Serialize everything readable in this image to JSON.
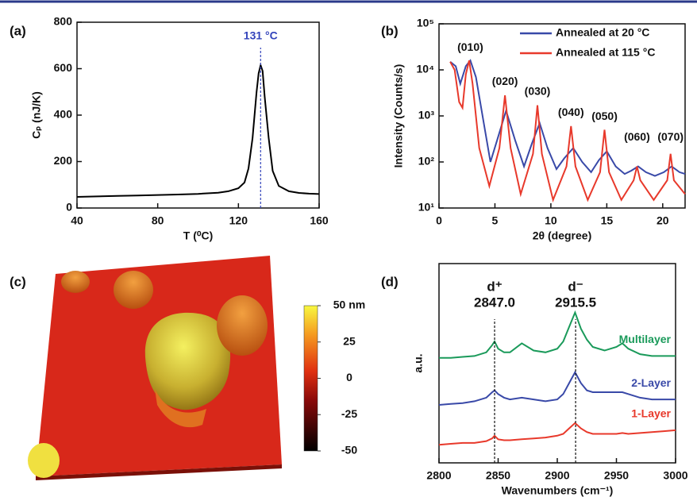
{
  "chart_data": [
    {
      "type": "line",
      "label": "(a)",
      "xlabel": "T (⁰C)",
      "ylabel": "Cₚ (nJ/K)",
      "color": "#000000",
      "x": [
        40,
        50,
        60,
        70,
        80,
        90,
        100,
        110,
        115,
        120,
        123,
        125,
        127,
        129,
        130,
        131,
        132,
        133,
        135,
        137,
        140,
        145,
        150,
        155,
        160
      ],
      "values": [
        48,
        50,
        52,
        54,
        56,
        58,
        61,
        66,
        72,
        85,
        110,
        170,
        300,
        500,
        580,
        615,
        590,
        480,
        300,
        160,
        95,
        72,
        65,
        62,
        60
      ],
      "xlim": [
        40,
        160
      ],
      "xticks": [
        40,
        80,
        120,
        160
      ],
      "ylim": [
        0,
        800
      ],
      "yticks": [
        0,
        200,
        400,
        600,
        800
      ],
      "annotations": [
        {
          "text": "131 °C",
          "x": 131,
          "color": "#3344bb"
        }
      ]
    },
    {
      "type": "line",
      "label": "(b)",
      "xlabel": "2θ (degree)",
      "ylabel": "Intensity (Counts/s)",
      "log_y": true,
      "legend": "upper right",
      "series": [
        {
          "name": "Annealed at  20 °C",
          "color": "#3949a8",
          "x": [
            1.0,
            1.5,
            1.9,
            2.4,
            2.8,
            3.3,
            4.0,
            4.6,
            5.2,
            6.0,
            6.8,
            7.6,
            8.3,
            9.0,
            9.7,
            10.5,
            11.2,
            12.0,
            12.8,
            13.6,
            14.3,
            15.0,
            15.8,
            16.6,
            17.2,
            17.8,
            18.5,
            19.3,
            20.1,
            20.8,
            21.5,
            22.0
          ],
          "values": [
            15000,
            12000,
            5000,
            12000,
            16000,
            7000,
            700,
            100,
            300,
            1300,
            300,
            80,
            250,
            700,
            200,
            70,
            120,
            200,
            100,
            60,
            110,
            170,
            80,
            55,
            65,
            80,
            60,
            50,
            60,
            80,
            60,
            55
          ]
        },
        {
          "name": "Annealed at 115 °C",
          "color": "#e8392b",
          "x": [
            1.0,
            1.4,
            1.8,
            2.1,
            2.4,
            2.7,
            3.0,
            3.6,
            4.5,
            5.4,
            5.9,
            6.4,
            7.3,
            8.4,
            8.8,
            9.2,
            10.2,
            11.4,
            11.8,
            12.2,
            13.3,
            14.4,
            14.8,
            15.2,
            16.3,
            17.4,
            17.7,
            18.0,
            19.2,
            20.4,
            20.7,
            21.0,
            22.0
          ],
          "values": [
            15000,
            10000,
            2000,
            1500,
            8000,
            16000,
            5000,
            200,
            30,
            200,
            2800,
            200,
            20,
            150,
            1700,
            150,
            15,
            80,
            600,
            80,
            15,
            60,
            500,
            60,
            15,
            40,
            80,
            40,
            15,
            40,
            150,
            40,
            20
          ]
        }
      ],
      "xlim": [
        0,
        22
      ],
      "xticks": [
        0,
        5,
        10,
        15,
        20
      ],
      "ylim": [
        10,
        100000
      ],
      "yticks": [
        {
          "value": 10,
          "label": "10¹"
        },
        {
          "value": 100,
          "label": "10²"
        },
        {
          "value": 1000,
          "label": "10³"
        },
        {
          "value": 10000,
          "label": "10⁴"
        },
        {
          "value": 100000,
          "label": "10⁵"
        }
      ],
      "annotations": [
        {
          "text": "(010)",
          "x": 2.8,
          "y": 30000
        },
        {
          "text": "(020)",
          "x": 5.9,
          "y": 5500
        },
        {
          "text": "(030)",
          "x": 8.8,
          "y": 3300
        },
        {
          "text": "(040)",
          "x": 11.8,
          "y": 1150
        },
        {
          "text": "(050)",
          "x": 14.8,
          "y": 950
        },
        {
          "text": "(060)",
          "x": 17.7,
          "y": 340
        },
        {
          "text": "(070)",
          "x": 20.7,
          "y": 340
        }
      ]
    },
    {
      "type": "image",
      "label": "(c)",
      "colorbar": {
        "lim": [
          -50,
          50
        ],
        "ticks": [
          {
            "value": 50,
            "label": "50 nm"
          },
          25,
          0,
          -25,
          -50
        ]
      }
    },
    {
      "type": "line",
      "label": "(d)",
      "xlabel": "Wavenumbers (cm⁻¹)",
      "ylabel": "a.u.",
      "x": [
        2800,
        2810,
        2820,
        2830,
        2840,
        2845,
        2847,
        2850,
        2855,
        2860,
        2870,
        2880,
        2890,
        2900,
        2905,
        2910,
        2915,
        2920,
        2925,
        2930,
        2940,
        2950,
        2955,
        2960,
        2970,
        2980,
        2990,
        3000
      ],
      "series": [
        {
          "name": "1-Layer",
          "color": "#e8392b",
          "values": [
            1.0,
            1.05,
            1.1,
            1.1,
            1.2,
            1.35,
            1.5,
            1.3,
            1.25,
            1.25,
            1.3,
            1.35,
            1.4,
            1.5,
            1.6,
            1.9,
            2.2,
            1.9,
            1.7,
            1.6,
            1.6,
            1.6,
            1.65,
            1.6,
            1.65,
            1.7,
            1.75,
            1.8
          ]
        },
        {
          "name": "2-Layer",
          "color": "#3949a8",
          "values": [
            3.2,
            3.25,
            3.3,
            3.4,
            3.6,
            3.9,
            4.0,
            3.8,
            3.6,
            3.5,
            3.6,
            3.5,
            3.4,
            3.5,
            3.8,
            4.4,
            5.0,
            4.4,
            4.0,
            3.9,
            3.9,
            3.9,
            3.9,
            3.8,
            3.6,
            3.5,
            3.5,
            3.5
          ]
        },
        {
          "name": "Multilayer",
          "color": "#1a9a5a",
          "values": [
            5.8,
            5.8,
            5.85,
            5.9,
            6.1,
            6.5,
            6.7,
            6.3,
            6.1,
            6.1,
            6.6,
            6.2,
            6.1,
            6.3,
            6.7,
            7.5,
            8.3,
            7.4,
            6.8,
            6.4,
            6.2,
            6.4,
            6.6,
            6.3,
            6.0,
            5.9,
            5.9,
            5.9
          ]
        }
      ],
      "xlim": [
        2800,
        3000
      ],
      "xticks": [
        2800,
        2850,
        2900,
        2950,
        3000
      ],
      "ylim": [
        0,
        11
      ],
      "annotations": [
        {
          "symbol": "d⁺",
          "text": "2847.0",
          "x": 2847
        },
        {
          "symbol": "d⁻",
          "text": "2915.5",
          "x": 2915.5
        }
      ]
    }
  ]
}
